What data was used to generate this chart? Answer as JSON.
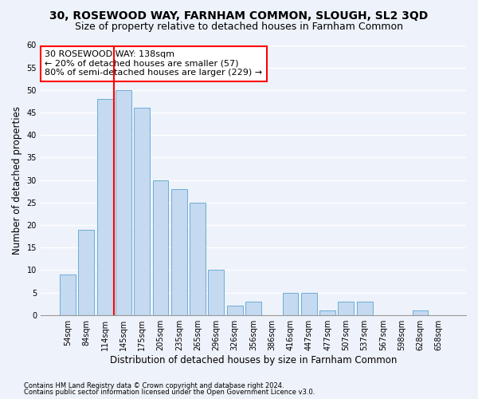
{
  "title": "30, ROSEWOOD WAY, FARNHAM COMMON, SLOUGH, SL2 3QD",
  "subtitle": "Size of property relative to detached houses in Farnham Common",
  "xlabel": "Distribution of detached houses by size in Farnham Common",
  "ylabel": "Number of detached properties",
  "footnote1": "Contains HM Land Registry data © Crown copyright and database right 2024.",
  "footnote2": "Contains public sector information licensed under the Open Government Licence v3.0.",
  "categories": [
    "54sqm",
    "84sqm",
    "114sqm",
    "145sqm",
    "175sqm",
    "205sqm",
    "235sqm",
    "265sqm",
    "296sqm",
    "326sqm",
    "356sqm",
    "386sqm",
    "416sqm",
    "447sqm",
    "477sqm",
    "507sqm",
    "537sqm",
    "567sqm",
    "598sqm",
    "628sqm",
    "658sqm"
  ],
  "values": [
    9,
    19,
    48,
    50,
    46,
    30,
    28,
    25,
    10,
    2,
    3,
    0,
    5,
    5,
    1,
    3,
    3,
    0,
    0,
    1,
    0
  ],
  "bar_color": "#c5d9f0",
  "bar_edge_color": "#6baed6",
  "vline_index": 3,
  "vline_color": "red",
  "annotation_text": "30 ROSEWOOD WAY: 138sqm\n← 20% of detached houses are smaller (57)\n80% of semi-detached houses are larger (229) →",
  "annotation_box_color": "white",
  "annotation_box_edge_color": "red",
  "ylim": [
    0,
    60
  ],
  "yticks": [
    0,
    5,
    10,
    15,
    20,
    25,
    30,
    35,
    40,
    45,
    50,
    55,
    60
  ],
  "background_color": "#eef2fa",
  "grid_color": "white",
  "title_fontsize": 10,
  "subtitle_fontsize": 9,
  "annotation_fontsize": 8,
  "ylabel_fontsize": 8.5,
  "xlabel_fontsize": 8.5,
  "tick_fontsize": 7,
  "footnote_fontsize": 6
}
